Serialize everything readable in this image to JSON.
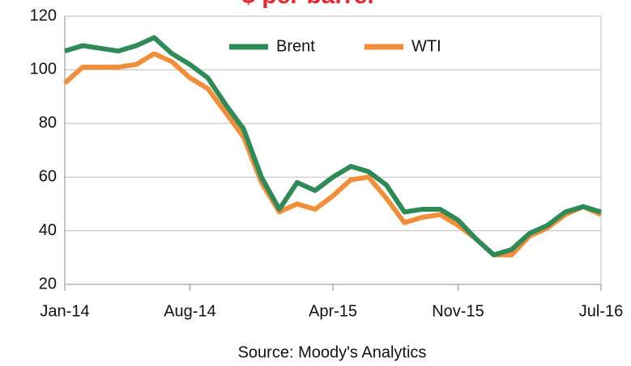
{
  "chart_data": {
    "type": "line",
    "title": "$ per barrel",
    "source": "Source: Moody's Analytics",
    "x": [
      0,
      1,
      2,
      3,
      4,
      5,
      6,
      7,
      8,
      9,
      10,
      11,
      12,
      13,
      14,
      15,
      16,
      17,
      18,
      19,
      20,
      21,
      22,
      23,
      24,
      25,
      26,
      27,
      28,
      29,
      30
    ],
    "series": [
      {
        "name": "Brent",
        "color": "#2e8b57",
        "values": [
          107,
          109,
          108,
          107,
          109,
          112,
          106,
          102,
          97,
          87,
          78,
          60,
          48,
          58,
          55,
          60,
          64,
          62,
          57,
          47,
          48,
          48,
          44,
          37,
          31,
          33,
          39,
          42,
          47,
          49,
          47
        ]
      },
      {
        "name": "WTI",
        "color": "#f28e3a",
        "values": [
          95,
          101,
          101,
          101,
          102,
          106,
          103,
          97,
          93,
          84,
          75,
          58,
          47,
          50,
          48,
          53,
          59,
          60,
          52,
          43,
          45,
          46,
          42,
          37,
          31,
          31,
          38,
          41,
          46,
          49,
          46
        ]
      }
    ],
    "xlim": [
      0,
      30
    ],
    "xticks": [
      {
        "value": 0,
        "label": "Jan-14"
      },
      {
        "value": 7,
        "label": "Aug-14"
      },
      {
        "value": 15,
        "label": "Apr-15"
      },
      {
        "value": 22,
        "label": "Nov-15"
      },
      {
        "value": 30,
        "label": "Jul-16"
      }
    ],
    "ylim": [
      20,
      120
    ],
    "yticks": [
      20,
      40,
      60,
      80,
      100,
      120
    ],
    "grid": true,
    "legend": "top"
  }
}
